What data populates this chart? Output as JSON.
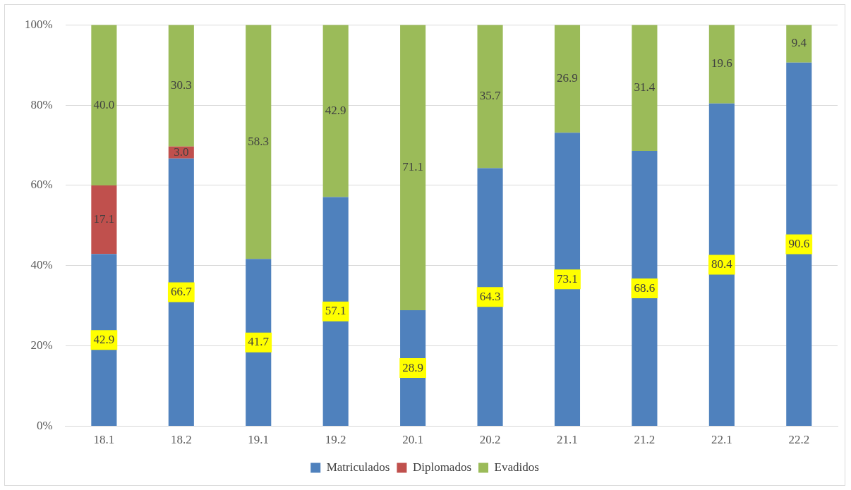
{
  "chart_data": {
    "type": "bar",
    "stacked": true,
    "categories": [
      "18.1",
      "18.2",
      "19.1",
      "19.2",
      "20.1",
      "20.2",
      "21.1",
      "21.2",
      "22.1",
      "22.2"
    ],
    "series": [
      {
        "name": "Matriculados",
        "color": "#4f81bd",
        "values": [
          42.9,
          66.7,
          41.7,
          57.1,
          28.9,
          64.3,
          73.1,
          68.6,
          80.4,
          90.6
        ],
        "value_labels": [
          "42.9",
          "66.7",
          "41.7",
          "57.1",
          "28.9",
          "64.3",
          "73.1",
          "68.6",
          "80.4",
          "90.6"
        ]
      },
      {
        "name": "Diplomados",
        "color": "#c0504d",
        "values": [
          17.1,
          3.0,
          null,
          null,
          null,
          null,
          null,
          null,
          null,
          null
        ],
        "value_labels": [
          "17.1",
          "3.0",
          null,
          null,
          null,
          null,
          null,
          null,
          null,
          null
        ]
      },
      {
        "name": "Evadidos",
        "color": "#9bbb59",
        "values": [
          40.0,
          30.3,
          58.3,
          42.9,
          71.1,
          35.7,
          26.9,
          31.4,
          19.6,
          9.4
        ],
        "value_labels": [
          "40.0",
          "30.3",
          "58.3",
          "42.9",
          "71.1",
          "35.7",
          "26.9",
          "31.4",
          "19.6",
          "9.4"
        ]
      }
    ],
    "ylim": [
      0,
      100
    ],
    "yticks": [
      {
        "value": 0,
        "label": "0%"
      },
      {
        "value": 20,
        "label": "20%"
      },
      {
        "value": 40,
        "label": "40%"
      },
      {
        "value": 60,
        "label": "60%"
      },
      {
        "value": 80,
        "label": "80%"
      },
      {
        "value": 100,
        "label": "100%"
      }
    ],
    "grid": "y",
    "legend": "bottom"
  }
}
